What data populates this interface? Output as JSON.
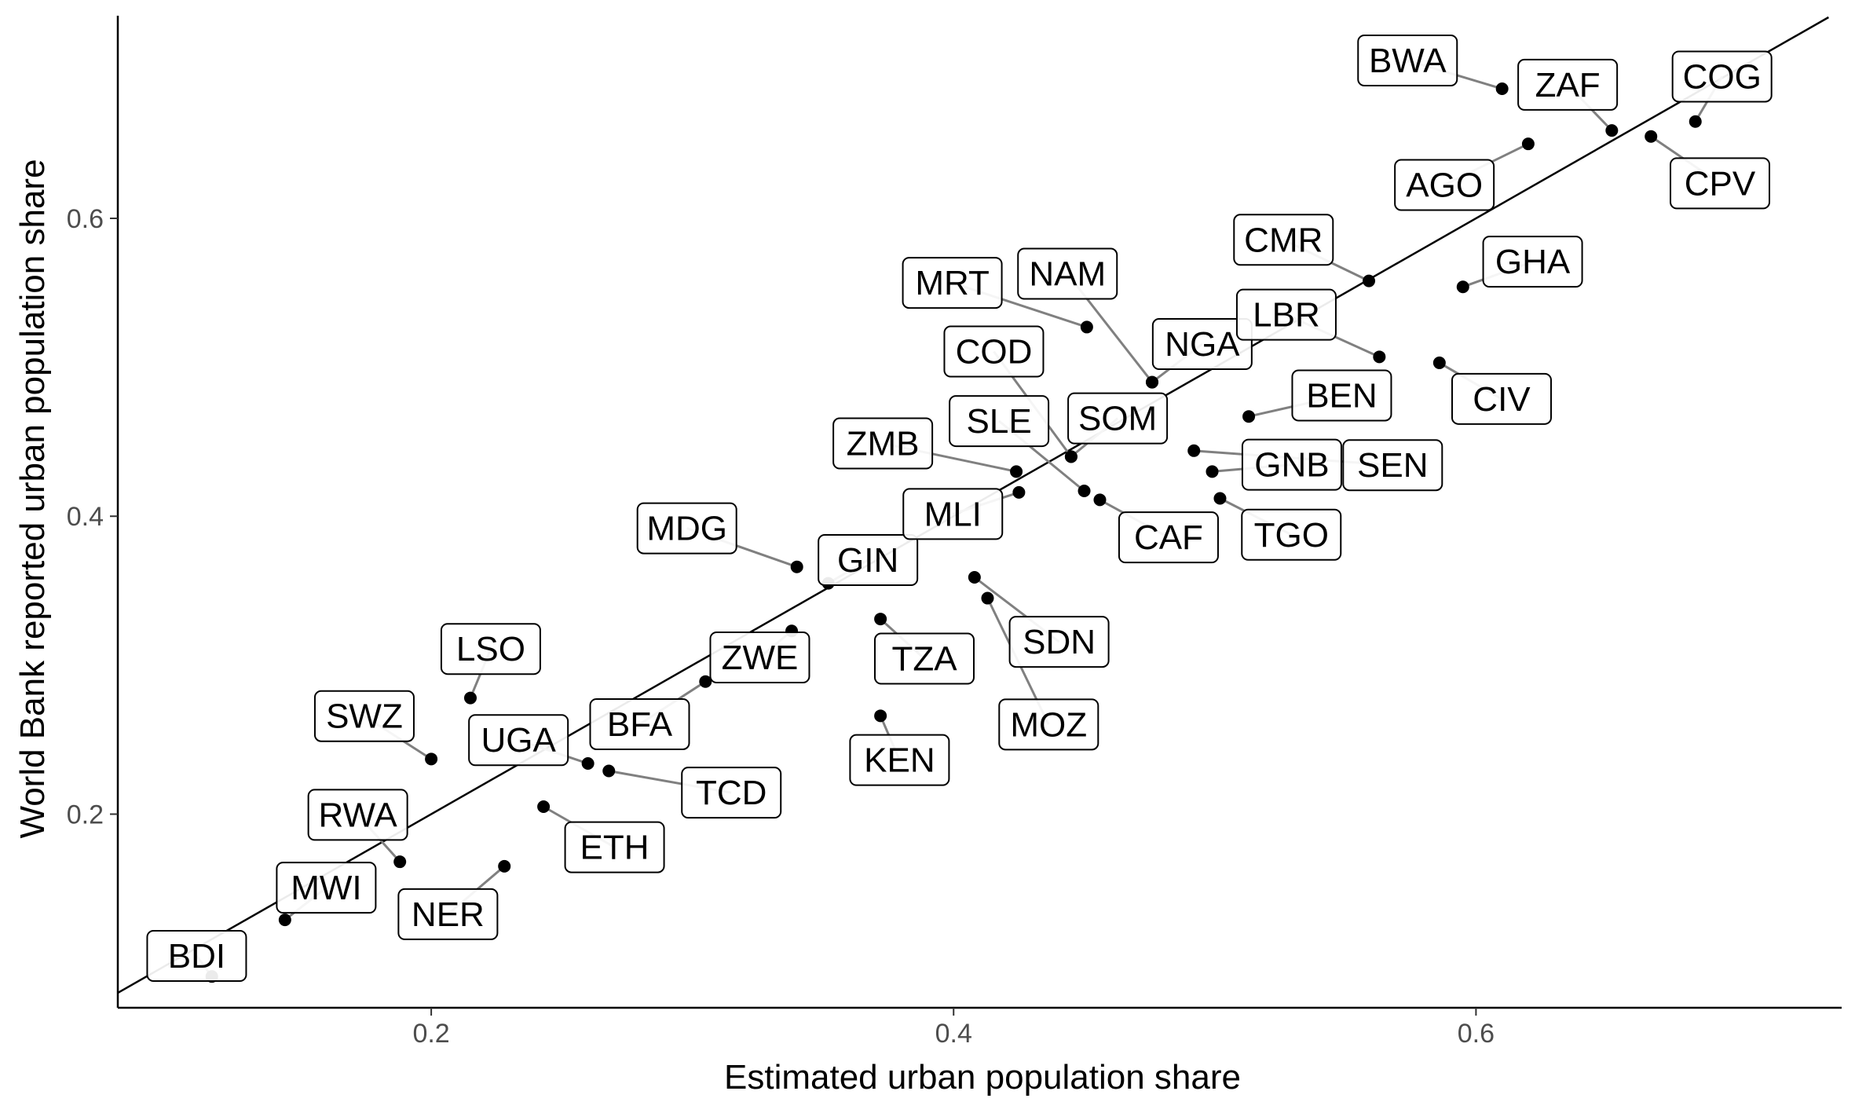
{
  "chart_data": {
    "type": "scatter",
    "title": "",
    "xlabel": "Estimated urban population share",
    "ylabel": "World Bank reported urban population share",
    "xlim": [
      0.08,
      0.74
    ],
    "ylim": [
      0.07,
      0.735
    ],
    "xticks": [
      {
        "value": 0.2,
        "label": "0.2"
      },
      {
        "value": 0.4,
        "label": "0.4"
      },
      {
        "value": 0.6,
        "label": "0.6"
      }
    ],
    "yticks": [
      {
        "value": 0.2,
        "label": "0.2"
      },
      {
        "value": 0.4,
        "label": "0.4"
      },
      {
        "value": 0.6,
        "label": "0.6"
      }
    ],
    "reference_line": "y = x",
    "grid": false,
    "colors": {
      "points": "#000000",
      "axis": "#000000",
      "segments": "#808080",
      "label_fill": "#ffffff",
      "label_border": "#000000",
      "tick_text": "#4d4d4d"
    },
    "points": [
      {
        "label": "BDI",
        "x": 0.116,
        "y": 0.091,
        "lx": 0.1102,
        "ly": 0.1048
      },
      {
        "label": "MWI",
        "x": 0.144,
        "y": 0.129,
        "lx": 0.1598,
        "ly": 0.1506
      },
      {
        "label": "NER",
        "x": 0.228,
        "y": 0.165,
        "lx": 0.2064,
        "ly": 0.1328
      },
      {
        "label": "RWA",
        "x": 0.188,
        "y": 0.168,
        "lx": 0.1719,
        "ly": 0.1995
      },
      {
        "label": "ETH",
        "x": 0.243,
        "y": 0.205,
        "lx": 0.2702,
        "ly": 0.1778
      },
      {
        "label": "SWZ",
        "x": 0.2,
        "y": 0.237,
        "lx": 0.1744,
        "ly": 0.2658
      },
      {
        "label": "LSO",
        "x": 0.215,
        "y": 0.278,
        "lx": 0.2228,
        "ly": 0.3109
      },
      {
        "label": "UGA",
        "x": 0.26,
        "y": 0.234,
        "lx": 0.2334,
        "ly": 0.2497
      },
      {
        "label": "TCD",
        "x": 0.268,
        "y": 0.229,
        "lx": 0.3149,
        "ly": 0.2144
      },
      {
        "label": "BFA",
        "x": 0.305,
        "y": 0.289,
        "lx": 0.2798,
        "ly": 0.2604
      },
      {
        "label": "ZWE",
        "x": 0.338,
        "y": 0.323,
        "lx": 0.3258,
        "ly": 0.3052
      },
      {
        "label": "MDG",
        "x": 0.34,
        "y": 0.366,
        "lx": 0.2979,
        "ly": 0.3919
      },
      {
        "label": "GIN",
        "x": 0.352,
        "y": 0.355,
        "lx": 0.3672,
        "ly": 0.3706
      },
      {
        "label": "TZA",
        "x": 0.372,
        "y": 0.331,
        "lx": 0.3888,
        "ly": 0.3044
      },
      {
        "label": "KEN",
        "x": 0.372,
        "y": 0.266,
        "lx": 0.3793,
        "ly": 0.2363
      },
      {
        "label": "MOZ",
        "x": 0.413,
        "y": 0.345,
        "lx": 0.4364,
        "ly": 0.2602
      },
      {
        "label": "SDN",
        "x": 0.408,
        "y": 0.359,
        "lx": 0.4404,
        "ly": 0.3157
      },
      {
        "label": "MLI",
        "x": 0.425,
        "y": 0.416,
        "lx": 0.3997,
        "ly": 0.4015
      },
      {
        "label": "ZMB",
        "x": 0.424,
        "y": 0.43,
        "lx": 0.3729,
        "ly": 0.4489
      },
      {
        "label": "SLE",
        "x": 0.45,
        "y": 0.417,
        "lx": 0.4174,
        "ly": 0.4639
      },
      {
        "label": "CAF",
        "x": 0.456,
        "y": 0.411,
        "lx": 0.4823,
        "ly": 0.3858
      },
      {
        "label": "COD",
        "x": 0.445,
        "y": 0.44,
        "lx": 0.4154,
        "ly": 0.5106
      },
      {
        "label": "SOM",
        "x": 0.445,
        "y": 0.44,
        "lx": 0.4628,
        "ly": 0.4657
      },
      {
        "label": "MRT",
        "x": 0.451,
        "y": 0.527,
        "lx": 0.3995,
        "ly": 0.5567
      },
      {
        "label": "NAM",
        "x": 0.476,
        "y": 0.49,
        "lx": 0.4436,
        "ly": 0.5628
      },
      {
        "label": "NGA",
        "x": 0.476,
        "y": 0.49,
        "lx": 0.4952,
        "ly": 0.5156
      },
      {
        "label": "GNB",
        "x": 0.499,
        "y": 0.43,
        "lx": 0.5295,
        "ly": 0.4346
      },
      {
        "label": "TGO",
        "x": 0.502,
        "y": 0.412,
        "lx": 0.5293,
        "ly": 0.3876
      },
      {
        "label": "CMR",
        "x": 0.559,
        "y": 0.558,
        "lx": 0.5263,
        "ly": 0.5856
      },
      {
        "label": "LBR",
        "x": 0.563,
        "y": 0.507,
        "lx": 0.5274,
        "ly": 0.5353
      },
      {
        "label": "BEN",
        "x": 0.513,
        "y": 0.467,
        "lx": 0.5486,
        "ly": 0.4811
      },
      {
        "label": "SEN",
        "x": 0.492,
        "y": 0.444,
        "lx": 0.5681,
        "ly": 0.4343
      },
      {
        "label": "CIV",
        "x": 0.586,
        "y": 0.503,
        "lx": 0.6098,
        "ly": 0.4788
      },
      {
        "label": "GHA",
        "x": 0.595,
        "y": 0.554,
        "lx": 0.6217,
        "ly": 0.5709
      },
      {
        "label": "AGO",
        "x": 0.62,
        "y": 0.65,
        "lx": 0.5879,
        "ly": 0.6224
      },
      {
        "label": "BWA",
        "x": 0.61,
        "y": 0.687,
        "lx": 0.5738,
        "ly": 0.706
      },
      {
        "label": "ZAF",
        "x": 0.652,
        "y": 0.659,
        "lx": 0.6351,
        "ly": 0.6897
      },
      {
        "label": "CPV",
        "x": 0.667,
        "y": 0.655,
        "lx": 0.6934,
        "ly": 0.6235
      },
      {
        "label": "COG",
        "x": 0.684,
        "y": 0.665,
        "lx": 0.6942,
        "ly": 0.6952
      }
    ]
  }
}
